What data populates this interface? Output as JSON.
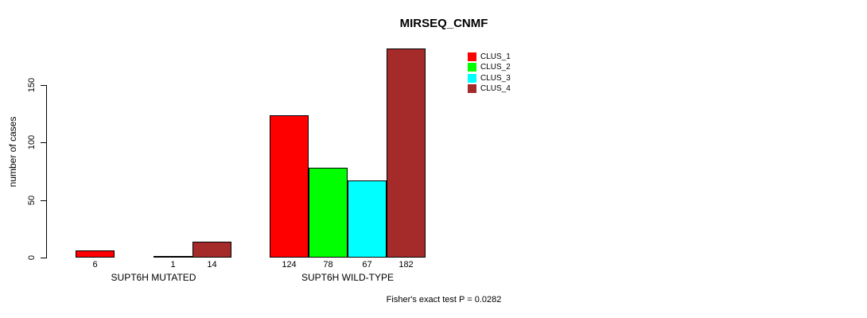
{
  "chart_data": {
    "type": "bar",
    "title": "MIRSEQ_CNMF",
    "xlabel": "",
    "ylabel": "number of cases",
    "ylim": [
      0,
      185
    ],
    "yticks": [
      0,
      50,
      100,
      150
    ],
    "grid": false,
    "legend_position": "top-right-inside",
    "categories": [
      "SUPT6H MUTATED",
      "SUPT6H WILD-TYPE"
    ],
    "series": [
      {
        "name": "CLUS_1",
        "color": "#ff0000",
        "values": [
          6,
          124
        ]
      },
      {
        "name": "CLUS_2",
        "color": "#00ff00",
        "values": [
          0,
          78
        ]
      },
      {
        "name": "CLUS_3",
        "color": "#00ffff",
        "values": [
          1,
          67
        ]
      },
      {
        "name": "CLUS_4",
        "color": "#a52a2a",
        "values": [
          14,
          182
        ]
      }
    ],
    "bar_value_labels": [
      [
        "6",
        null,
        "1",
        "14"
      ],
      [
        "124",
        "78",
        "67",
        "182"
      ]
    ],
    "annotation": "Fisher's exact test P = 0.0282",
    "colors": {
      "bar_border": "#000000",
      "axis": "#000000",
      "background": "#ffffff"
    }
  }
}
